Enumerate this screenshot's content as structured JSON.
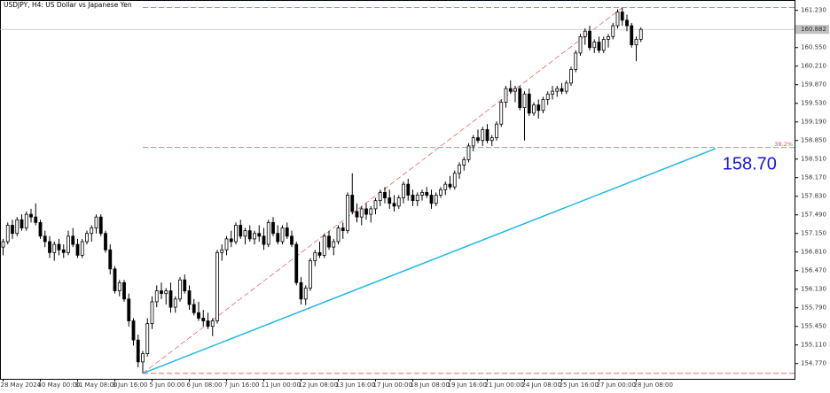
{
  "chart_data": {
    "type": "candlestick",
    "title": "USDJPY, H4:  US Dollar vs Japanese Yen",
    "categories": [
      "28 May 2024",
      null,
      null,
      null,
      null,
      null,
      null,
      null,
      "30 May 00:00",
      null,
      null,
      null,
      null,
      null,
      null,
      null,
      "31 May 08:00",
      null,
      null,
      null,
      null,
      null,
      null,
      null,
      "3 Jun 16:00",
      null,
      null,
      null,
      null,
      null,
      null,
      null,
      "5 Jun 00:00",
      null,
      null,
      null,
      null,
      null,
      null,
      null,
      "6 Jun 08:00",
      null,
      null,
      null,
      null,
      null,
      null,
      null,
      "7 Jun 16:00",
      null,
      null,
      null,
      null,
      null,
      null,
      null,
      "11 Jun 00:00",
      null,
      null,
      null,
      null,
      null,
      null,
      null,
      "12 Jun 08:00",
      null,
      null,
      null,
      null,
      null,
      null,
      null,
      "13 Jun 16:00",
      null,
      null,
      null,
      null,
      null,
      null,
      null,
      "17 Jun 00:00",
      null,
      null,
      null,
      null,
      null,
      null,
      null,
      "18 Jun 08:00",
      null,
      null,
      null,
      null,
      null,
      null,
      null,
      "19 Jun 16:00",
      null,
      null,
      null,
      null,
      null,
      null,
      null,
      "21 Jun 00:00",
      null,
      null,
      null,
      null,
      null,
      null,
      null,
      "24 Jun 08:00",
      null,
      null,
      null,
      null,
      null,
      null,
      null,
      "25 Jun 16:00",
      null,
      null,
      null,
      null,
      null,
      null,
      null,
      "27 Jun 00:00",
      null,
      null,
      null,
      null,
      null,
      null,
      null,
      "28 Jun 08:00",
      null
    ],
    "candles": [
      [
        156.9,
        157.05,
        156.75,
        157.0
      ],
      [
        157.0,
        157.35,
        156.95,
        157.3
      ],
      [
        157.3,
        157.4,
        157.05,
        157.15
      ],
      [
        157.15,
        157.45,
        157.1,
        157.4
      ],
      [
        157.4,
        157.5,
        157.2,
        157.25
      ],
      [
        157.25,
        157.55,
        157.2,
        157.5
      ],
      [
        157.5,
        157.6,
        157.35,
        157.45
      ],
      [
        157.45,
        157.7,
        157.3,
        157.35
      ],
      [
        157.35,
        157.4,
        157.05,
        157.1
      ],
      [
        157.1,
        157.2,
        156.9,
        157.0
      ],
      [
        157.0,
        157.1,
        156.7,
        156.8
      ],
      [
        156.8,
        157.0,
        156.65,
        156.95
      ],
      [
        156.95,
        157.05,
        156.75,
        156.85
      ],
      [
        156.85,
        156.95,
        156.7,
        156.8
      ],
      [
        156.8,
        157.2,
        156.75,
        157.1
      ],
      [
        157.1,
        157.25,
        156.9,
        156.95
      ],
      [
        156.95,
        157.05,
        156.7,
        156.75
      ],
      [
        156.75,
        157.05,
        156.7,
        157.0
      ],
      [
        157.0,
        157.2,
        156.95,
        157.15
      ],
      [
        157.15,
        157.3,
        157.0,
        157.25
      ],
      [
        157.25,
        157.5,
        157.15,
        157.45
      ],
      [
        157.45,
        157.5,
        157.1,
        157.15
      ],
      [
        157.15,
        157.2,
        156.8,
        156.85
      ],
      [
        156.85,
        156.95,
        156.4,
        156.5
      ],
      [
        156.5,
        156.55,
        156.05,
        156.1
      ],
      [
        156.1,
        156.3,
        156.0,
        156.25
      ],
      [
        156.25,
        156.3,
        155.9,
        155.95
      ],
      [
        155.95,
        156.05,
        155.45,
        155.55
      ],
      [
        155.55,
        155.6,
        155.1,
        155.2
      ],
      [
        155.2,
        155.3,
        154.7,
        154.8
      ],
      [
        154.8,
        155.0,
        154.59,
        154.95
      ],
      [
        154.95,
        155.6,
        154.9,
        155.5
      ],
      [
        155.5,
        156.0,
        155.4,
        155.9
      ],
      [
        155.9,
        156.2,
        155.8,
        156.1
      ],
      [
        156.1,
        156.25,
        155.95,
        156.05
      ],
      [
        156.05,
        156.15,
        155.85,
        156.1
      ],
      [
        156.1,
        156.25,
        155.7,
        155.8
      ],
      [
        155.8,
        156.0,
        155.7,
        155.95
      ],
      [
        155.95,
        156.35,
        155.9,
        156.3
      ],
      [
        156.3,
        156.4,
        156.05,
        156.1
      ],
      [
        156.1,
        156.2,
        155.75,
        155.85
      ],
      [
        155.85,
        155.95,
        155.65,
        155.7
      ],
      [
        155.7,
        155.9,
        155.55,
        155.6
      ],
      [
        155.6,
        155.75,
        155.45,
        155.55
      ],
      [
        155.55,
        155.7,
        155.4,
        155.45
      ],
      [
        155.45,
        155.6,
        155.27,
        155.55
      ],
      [
        155.55,
        156.85,
        155.5,
        156.8
      ],
      [
        156.8,
        156.95,
        156.65,
        156.85
      ],
      [
        156.85,
        157.1,
        156.75,
        157.05
      ],
      [
        157.05,
        157.2,
        156.9,
        157.0
      ],
      [
        157.0,
        157.35,
        156.95,
        157.3
      ],
      [
        157.3,
        157.4,
        157.05,
        157.1
      ],
      [
        157.1,
        157.25,
        156.95,
        157.2
      ],
      [
        157.2,
        157.3,
        157.0,
        157.05
      ],
      [
        157.05,
        157.2,
        156.95,
        157.15
      ],
      [
        157.15,
        157.3,
        157.0,
        157.1
      ],
      [
        157.1,
        157.25,
        156.85,
        156.95
      ],
      [
        156.95,
        157.4,
        156.9,
        157.35
      ],
      [
        157.35,
        157.45,
        157.1,
        157.15
      ],
      [
        157.15,
        157.3,
        156.95,
        157.0
      ],
      [
        157.0,
        157.3,
        156.95,
        157.25
      ],
      [
        157.25,
        157.35,
        157.05,
        157.1
      ],
      [
        157.1,
        157.2,
        156.9,
        156.95
      ],
      [
        156.95,
        157.0,
        156.2,
        156.25
      ],
      [
        156.25,
        156.35,
        155.85,
        155.95
      ],
      [
        155.95,
        156.2,
        155.84,
        156.15
      ],
      [
        156.15,
        156.7,
        156.1,
        156.65
      ],
      [
        156.65,
        156.85,
        156.55,
        156.8
      ],
      [
        156.8,
        157.0,
        156.7,
        156.75
      ],
      [
        156.75,
        157.15,
        156.7,
        157.1
      ],
      [
        157.1,
        157.2,
        156.85,
        156.9
      ],
      [
        156.9,
        157.05,
        156.75,
        157.0
      ],
      [
        157.0,
        157.3,
        156.95,
        157.25
      ],
      [
        157.25,
        157.35,
        157.05,
        157.2
      ],
      [
        157.2,
        157.9,
        157.15,
        157.85
      ],
      [
        157.85,
        158.25,
        157.5,
        157.55
      ],
      [
        157.55,
        157.7,
        157.35,
        157.45
      ],
      [
        157.45,
        157.65,
        157.3,
        157.6
      ],
      [
        157.6,
        157.7,
        157.4,
        157.5
      ],
      [
        157.5,
        157.65,
        157.35,
        157.6
      ],
      [
        157.6,
        157.8,
        157.5,
        157.75
      ],
      [
        157.75,
        157.95,
        157.65,
        157.9
      ],
      [
        157.9,
        158.0,
        157.7,
        157.8
      ],
      [
        157.8,
        157.95,
        157.6,
        157.7
      ],
      [
        157.7,
        157.85,
        157.55,
        157.65
      ],
      [
        157.65,
        157.85,
        157.6,
        157.8
      ],
      [
        157.8,
        158.1,
        157.7,
        158.05
      ],
      [
        158.05,
        158.15,
        157.75,
        157.85
      ],
      [
        157.85,
        157.95,
        157.65,
        157.75
      ],
      [
        157.75,
        157.9,
        157.65,
        157.85
      ],
      [
        157.85,
        157.95,
        157.75,
        157.9
      ],
      [
        157.9,
        158.0,
        157.8,
        157.85
      ],
      [
        157.85,
        157.95,
        157.6,
        157.7
      ],
      [
        157.7,
        157.9,
        157.65,
        157.85
      ],
      [
        157.85,
        158.0,
        157.8,
        157.95
      ],
      [
        157.95,
        158.1,
        157.85,
        158.05
      ],
      [
        158.05,
        158.2,
        157.95,
        158.0
      ],
      [
        158.0,
        158.3,
        157.95,
        158.25
      ],
      [
        158.25,
        158.45,
        158.15,
        158.4
      ],
      [
        158.4,
        158.55,
        158.3,
        158.5
      ],
      [
        158.5,
        158.8,
        158.45,
        158.75
      ],
      [
        158.75,
        158.95,
        158.65,
        158.9
      ],
      [
        158.9,
        159.05,
        158.8,
        158.85
      ],
      [
        158.85,
        159.1,
        158.75,
        159.05
      ],
      [
        159.05,
        159.15,
        158.8,
        158.85
      ],
      [
        158.85,
        158.95,
        158.75,
        158.9
      ],
      [
        158.9,
        159.2,
        158.85,
        159.15
      ],
      [
        159.15,
        159.6,
        159.1,
        159.55
      ],
      [
        159.55,
        159.85,
        159.45,
        159.8
      ],
      [
        159.8,
        159.95,
        159.7,
        159.75
      ],
      [
        159.75,
        159.85,
        159.55,
        159.8
      ],
      [
        159.8,
        159.85,
        159.4,
        159.45
      ],
      [
        159.45,
        159.75,
        158.85,
        159.7
      ],
      [
        159.7,
        159.8,
        159.3,
        159.35
      ],
      [
        159.35,
        159.55,
        159.3,
        159.5
      ],
      [
        159.5,
        159.6,
        159.25,
        159.4
      ],
      [
        159.4,
        159.65,
        159.35,
        159.6
      ],
      [
        159.6,
        159.75,
        159.5,
        159.7
      ],
      [
        159.7,
        159.85,
        159.6,
        159.75
      ],
      [
        159.75,
        159.85,
        159.65,
        159.8
      ],
      [
        159.8,
        159.9,
        159.7,
        159.75
      ],
      [
        159.75,
        159.95,
        159.7,
        159.9
      ],
      [
        159.9,
        160.2,
        159.85,
        160.15
      ],
      [
        160.15,
        160.5,
        160.1,
        160.45
      ],
      [
        160.45,
        160.8,
        160.4,
        160.75
      ],
      [
        160.75,
        160.9,
        160.6,
        160.85
      ],
      [
        160.85,
        160.95,
        160.5,
        160.55
      ],
      [
        160.55,
        160.7,
        160.45,
        160.65
      ],
      [
        160.65,
        160.75,
        160.45,
        160.5
      ],
      [
        160.5,
        160.75,
        160.45,
        160.7
      ],
      [
        160.7,
        160.8,
        160.55,
        160.75
      ],
      [
        160.75,
        161.0,
        160.7,
        160.95
      ],
      [
        160.95,
        161.25,
        160.9,
        161.2
      ],
      [
        161.2,
        161.28,
        160.95,
        161.05
      ],
      [
        161.05,
        161.15,
        160.85,
        160.95
      ],
      [
        160.95,
        161.0,
        160.55,
        160.6
      ],
      [
        160.6,
        160.75,
        160.3,
        160.7
      ],
      [
        160.7,
        160.92,
        160.65,
        160.882
      ]
    ],
    "up_color": "#ffffff",
    "down_color": "#000000",
    "ylim": [
      154.49,
      161.42
    ],
    "yticks": [
      {
        "value": 154.77,
        "label": "154.770"
      },
      {
        "value": 155.11,
        "label": "155.110"
      },
      {
        "value": 155.45,
        "label": "155.450"
      },
      {
        "value": 155.79,
        "label": "155.790"
      },
      {
        "value": 156.13,
        "label": "156.130"
      },
      {
        "value": 156.47,
        "label": "156.470"
      },
      {
        "value": 156.81,
        "label": "156.810"
      },
      {
        "value": 157.15,
        "label": "157.150"
      },
      {
        "value": 157.49,
        "label": "157.490"
      },
      {
        "value": 157.83,
        "label": "157.830"
      },
      {
        "value": 158.17,
        "label": "158.170"
      },
      {
        "value": 158.51,
        "label": "158.510"
      },
      {
        "value": 158.85,
        "label": "158.850"
      },
      {
        "value": 159.19,
        "label": "159.190"
      },
      {
        "value": 159.53,
        "label": "159.530"
      },
      {
        "value": 159.87,
        "label": "159.870"
      },
      {
        "value": 160.21,
        "label": "160.210"
      },
      {
        "value": 160.55,
        "label": "160.550"
      },
      {
        "value": 161.23,
        "label": "161.230"
      }
    ],
    "current_price": 160.882,
    "fibo": {
      "x": [
        30,
        133
      ],
      "values": [
        154.59,
        161.28
      ],
      "color": "#e05050",
      "levels": [
        {
          "value": 161.28
        },
        {
          "value": 158.72,
          "name": "38.2%"
        },
        {
          "value": 154.59
        }
      ]
    },
    "trendline": {
      "x": [
        30,
        153
      ],
      "values": [
        154.59,
        158.7
      ],
      "label": "158.70",
      "color": "#1ab8e8"
    },
    "label_color": "#1414e6"
  }
}
